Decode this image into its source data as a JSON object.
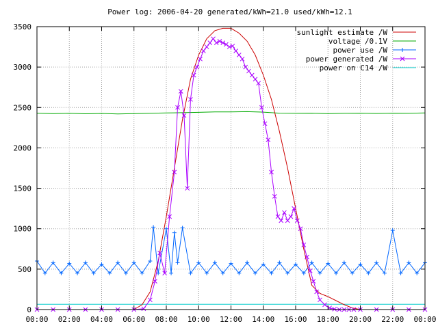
{
  "chart_data": {
    "type": "line",
    "title": "Power log: 2006-04-20 generated/kWh=21.0 used/kWh=12.1",
    "xlabel": "",
    "ylabel": "",
    "xlim_hours": [
      0,
      24
    ],
    "ylim": [
      0,
      3500
    ],
    "x_ticks": [
      "00:00",
      "02:00",
      "04:00",
      "06:00",
      "08:00",
      "10:00",
      "12:00",
      "14:00",
      "16:00",
      "18:00",
      "20:00",
      "22:00",
      "00:00"
    ],
    "y_ticks": [
      "0",
      "500",
      "1000",
      "1500",
      "2000",
      "2500",
      "3000",
      "3500"
    ],
    "grid": true,
    "legend_position": "top-right",
    "series": [
      {
        "name": "sunlight estimate /W",
        "color": "#cc0000",
        "marker": "none",
        "x": [
          6.0,
          6.5,
          7.0,
          7.5,
          8.0,
          8.5,
          9.0,
          9.5,
          10.0,
          10.5,
          11.0,
          11.5,
          12.0,
          12.5,
          13.0,
          13.5,
          14.0,
          14.5,
          15.0,
          15.5,
          16.0,
          16.5,
          17.0,
          17.5,
          18.0,
          18.5,
          19.0,
          19.5,
          20.0
        ],
        "y": [
          0,
          60,
          220,
          600,
          1150,
          1750,
          2350,
          2850,
          3150,
          3350,
          3450,
          3480,
          3480,
          3420,
          3320,
          3150,
          2900,
          2600,
          2200,
          1750,
          1250,
          750,
          300,
          200,
          160,
          110,
          60,
          20,
          0
        ]
      },
      {
        "name": "voltage /0.1V",
        "color": "#00aa00",
        "marker": "none",
        "x": [
          0,
          1,
          2,
          3,
          4,
          5,
          6,
          7,
          8,
          9,
          10,
          11,
          12,
          13,
          14,
          15,
          16,
          17,
          18,
          19,
          20,
          21,
          22,
          23,
          24
        ],
        "y": [
          2430,
          2425,
          2428,
          2422,
          2426,
          2420,
          2424,
          2428,
          2432,
          2436,
          2440,
          2445,
          2446,
          2448,
          2442,
          2430,
          2428,
          2430,
          2424,
          2428,
          2430,
          2426,
          2430,
          2428,
          2432
        ]
      },
      {
        "name": "power use /W",
        "color": "#0066ff",
        "marker": "+",
        "x": [
          0.0,
          0.5,
          1.0,
          1.5,
          2.0,
          2.5,
          3.0,
          3.5,
          4.0,
          4.5,
          5.0,
          5.5,
          6.0,
          6.5,
          7.0,
          7.2,
          7.5,
          8.0,
          8.3,
          8.5,
          8.7,
          9.0,
          9.5,
          10.0,
          10.5,
          11.0,
          11.5,
          12.0,
          12.5,
          13.0,
          13.5,
          14.0,
          14.5,
          15.0,
          15.5,
          16.0,
          16.5,
          17.0,
          17.5,
          18.0,
          18.5,
          19.0,
          19.5,
          20.0,
          20.5,
          21.0,
          21.5,
          22.0,
          22.5,
          23.0,
          23.5,
          24.0
        ],
        "y": [
          600,
          450,
          580,
          450,
          570,
          450,
          580,
          450,
          560,
          450,
          580,
          450,
          580,
          450,
          600,
          1020,
          450,
          1000,
          450,
          950,
          580,
          1010,
          450,
          580,
          450,
          580,
          450,
          570,
          450,
          580,
          450,
          560,
          450,
          580,
          450,
          560,
          450,
          580,
          450,
          570,
          450,
          580,
          450,
          560,
          450,
          580,
          450,
          980,
          450,
          580,
          450,
          580
        ]
      },
      {
        "name": "power generated /W",
        "color": "#aa00ff",
        "marker": "x",
        "x": [
          0.0,
          1.0,
          2.0,
          3.0,
          4.0,
          5.0,
          6.0,
          6.6,
          7.0,
          7.3,
          7.6,
          7.9,
          8.2,
          8.5,
          8.7,
          8.9,
          9.1,
          9.3,
          9.5,
          9.7,
          9.9,
          10.1,
          10.3,
          10.5,
          10.7,
          10.9,
          11.1,
          11.3,
          11.5,
          11.7,
          11.9,
          12.1,
          12.3,
          12.5,
          12.7,
          12.9,
          13.1,
          13.3,
          13.5,
          13.7,
          13.9,
          14.1,
          14.3,
          14.5,
          14.7,
          14.9,
          15.1,
          15.3,
          15.5,
          15.7,
          15.9,
          16.1,
          16.3,
          16.5,
          16.7,
          16.9,
          17.1,
          17.3,
          17.5,
          17.8,
          18.1,
          18.4,
          18.7,
          19.0,
          19.3,
          19.6,
          20.0,
          21.0,
          22.0,
          23.0,
          24.0
        ],
        "y": [
          0,
          0,
          0,
          0,
          0,
          0,
          0,
          10,
          120,
          350,
          700,
          450,
          1150,
          1700,
          2500,
          2700,
          2400,
          1500,
          2600,
          2900,
          3000,
          3100,
          3200,
          3250,
          3300,
          3350,
          3300,
          3320,
          3300,
          3280,
          3250,
          3260,
          3200,
          3150,
          3100,
          3000,
          2950,
          2900,
          2850,
          2800,
          2500,
          2300,
          2100,
          1700,
          1400,
          1150,
          1100,
          1200,
          1100,
          1150,
          1250,
          1100,
          1000,
          800,
          650,
          480,
          350,
          220,
          120,
          60,
          20,
          5,
          0,
          0,
          0,
          0,
          0,
          0,
          0,
          0,
          0
        ]
      },
      {
        "name": "power on C14 /W",
        "color": "#00cccc",
        "marker": "none",
        "x": [
          0,
          24
        ],
        "y": [
          65,
          65
        ]
      }
    ]
  }
}
